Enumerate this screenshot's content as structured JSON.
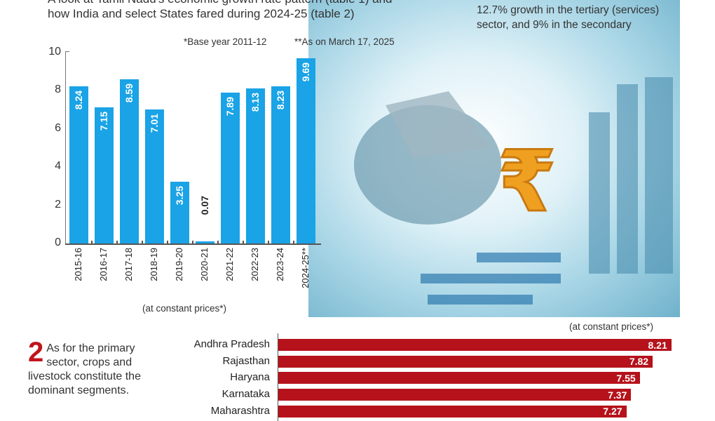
{
  "intro": {
    "line1": "A look at Tamil Nadu's economic growth rate pattern (table 1) and",
    "line2": "how India and select States fared during 2024-25 (table 2)"
  },
  "notes": {
    "base_year": "*Base year 2011-12",
    "as_on": "**As on March 17, 2025"
  },
  "top_right": "12.7% growth in the tertiary (services) sector, and 9% in the secondary",
  "point2": {
    "number": "2",
    "text": "As for the primary sector, crops and livestock constitute the dominant segments."
  },
  "colors": {
    "table1_bar": "#1aa3e6",
    "table2_bar": "#b5121b",
    "accent": "#c0141c"
  },
  "chart_data": [
    {
      "type": "bar",
      "orientation": "vertical",
      "categories": [
        "2015-16",
        "2016-17",
        "2017-18",
        "2018-19",
        "2019-20",
        "2020-21",
        "2021-22",
        "2022-23",
        "2023-24",
        "2024-25**"
      ],
      "values": [
        8.24,
        7.15,
        8.59,
        7.01,
        3.25,
        0.07,
        7.89,
        8.13,
        8.23,
        9.69
      ],
      "value_labels": [
        "8.24",
        "7.15",
        "8.59",
        "7.01",
        "3.25",
        "0.07",
        "7.89",
        "8.13",
        "8.23",
        "9.69"
      ],
      "yticks": [
        "0",
        "2",
        "4",
        "6",
        "8",
        "10"
      ],
      "ylim": [
        0,
        10
      ],
      "xlabel": "(at constant prices*)",
      "grid": false
    },
    {
      "type": "bar",
      "orientation": "horizontal",
      "categories": [
        "Andhra Pradesh",
        "Rajasthan",
        "Haryana",
        "Karnataka",
        "Maharashtra"
      ],
      "values": [
        8.21,
        7.82,
        7.55,
        7.37,
        7.27
      ],
      "value_labels": [
        "8.21",
        "7.82",
        "7.55",
        "7.37",
        "7.27"
      ],
      "note": "(at constant prices*)"
    }
  ]
}
